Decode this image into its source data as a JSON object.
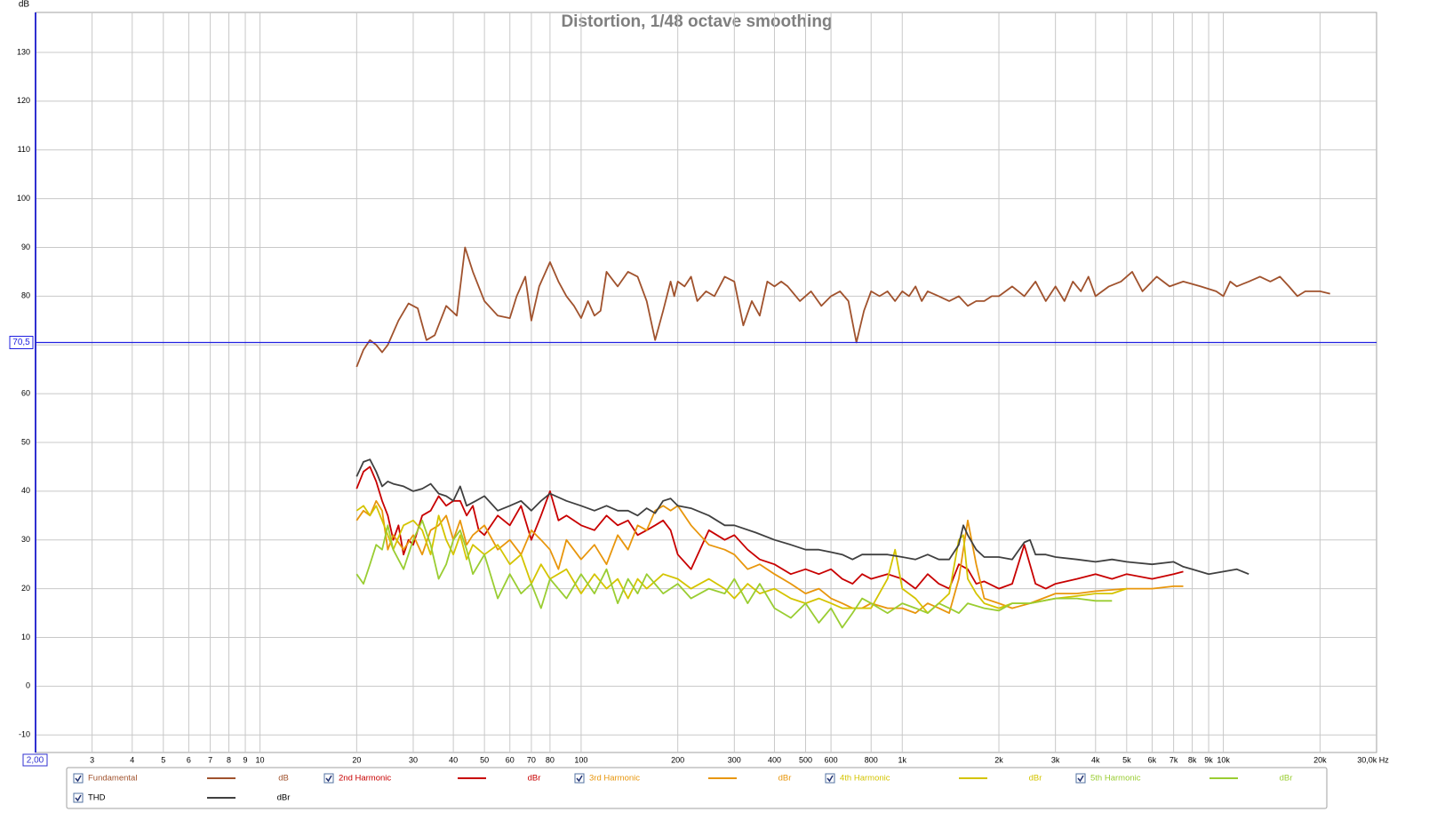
{
  "chart_data": {
    "type": "line",
    "title": "Distortion, 1/48 octave smoothing",
    "y_label": "dB",
    "x_start_label": "2,00",
    "x_end_label": "30,0k Hz",
    "log_x": true,
    "grid": true,
    "xlim": [
      2,
      30000
    ],
    "ylim": [
      -13.6,
      138.2
    ],
    "xticks": [
      3,
      4,
      5,
      6,
      7,
      8,
      9,
      10,
      20,
      30,
      40,
      50,
      60,
      70,
      80,
      100,
      200,
      300,
      400,
      500,
      600,
      800,
      {
        "value": 1000,
        "label": "1k"
      },
      {
        "value": 2000,
        "label": "2k"
      },
      {
        "value": 3000,
        "label": "3k"
      },
      {
        "value": 4000,
        "label": "4k"
      },
      {
        "value": 5000,
        "label": "5k"
      },
      {
        "value": 6000,
        "label": "6k"
      },
      {
        "value": 7000,
        "label": "7k"
      },
      {
        "value": 8000,
        "label": "8k"
      },
      {
        "value": 9000,
        "label": "9k"
      },
      {
        "value": 10000,
        "label": "10k"
      },
      {
        "value": 20000,
        "label": "20k"
      }
    ],
    "yticks": [
      -10,
      0,
      10,
      20,
      30,
      40,
      50,
      60,
      70,
      80,
      90,
      100,
      110,
      120,
      130
    ],
    "cursor": {
      "value": 70.5,
      "label": "70,5"
    },
    "series": [
      {
        "name": "Fundamental",
        "unit": "dB",
        "color": "#a0522d",
        "x": [
          20,
          21,
          22,
          23,
          24,
          25,
          27,
          29,
          31,
          33,
          35,
          38,
          41,
          43.5,
          46,
          50,
          55,
          60,
          63,
          67,
          70,
          74,
          80,
          85,
          90,
          95,
          100,
          105,
          110,
          115,
          120,
          130,
          140,
          150,
          160,
          170,
          180,
          190,
          195,
          200,
          210,
          220,
          230,
          245,
          260,
          280,
          300,
          320,
          340,
          360,
          380,
          400,
          420,
          440,
          480,
          520,
          560,
          600,
          640,
          680,
          720,
          760,
          800,
          850,
          900,
          950,
          1000,
          1050,
          1100,
          1150,
          1200,
          1300,
          1400,
          1500,
          1600,
          1700,
          1800,
          1900,
          2000,
          2200,
          2400,
          2600,
          2800,
          3000,
          3200,
          3400,
          3600,
          3800,
          4000,
          4400,
          4800,
          5200,
          5600,
          6200,
          6800,
          7500,
          8500,
          9500,
          10000,
          10500,
          11000,
          12000,
          13000,
          14000,
          15000,
          16000,
          17000,
          18000,
          20000,
          21500
        ],
        "values": [
          65.5,
          69,
          71,
          70,
          68.5,
          70,
          75,
          78.5,
          77.5,
          71,
          72,
          78,
          76,
          90,
          85,
          79,
          76,
          75.5,
          80,
          84,
          75,
          82,
          87,
          83,
          80,
          78,
          75.5,
          79,
          76,
          77,
          85,
          82,
          85,
          84,
          79,
          71,
          77,
          83,
          80,
          83,
          82,
          84,
          79,
          81,
          80,
          84,
          83,
          74,
          79,
          76,
          83,
          82,
          83,
          82,
          79,
          81,
          78,
          80,
          81,
          79,
          70.5,
          77,
          81,
          80,
          81,
          79,
          81,
          80,
          82,
          79,
          81,
          80,
          79,
          80,
          78,
          79,
          79,
          80,
          80,
          82,
          80,
          83,
          79,
          82,
          79,
          83,
          81,
          84,
          80,
          82,
          83,
          85,
          81,
          84,
          82,
          83,
          82,
          81,
          80,
          83,
          82,
          83,
          84,
          83,
          84,
          82,
          80,
          81,
          81,
          80.5
        ]
      },
      {
        "name": "2nd Harmonic",
        "unit": "dBr",
        "color": "#c80000",
        "x": [
          20,
          21,
          22,
          23,
          24,
          25,
          26,
          27,
          28,
          29,
          30,
          32,
          34,
          36,
          38,
          40,
          42,
          44,
          46,
          48,
          50,
          55,
          60,
          65,
          70,
          75,
          80,
          85,
          90,
          100,
          110,
          120,
          130,
          140,
          150,
          160,
          170,
          180,
          190,
          200,
          220,
          250,
          280,
          300,
          330,
          360,
          400,
          450,
          500,
          550,
          600,
          650,
          700,
          750,
          800,
          900,
          1000,
          1100,
          1200,
          1300,
          1400,
          1500,
          1600,
          1700,
          1800,
          2000,
          2200,
          2400,
          2600,
          2800,
          3000,
          3500,
          4000,
          4500,
          5000,
          6000,
          7000,
          7500
        ],
        "values": [
          40.5,
          44,
          45,
          42,
          38,
          35,
          30,
          33,
          27,
          30,
          29,
          35,
          36,
          39,
          37,
          38,
          38,
          35,
          37,
          32,
          31,
          35,
          33,
          37,
          30,
          35,
          40,
          34,
          35,
          33,
          32,
          35,
          33,
          34,
          31,
          32,
          33,
          34,
          32,
          27,
          24,
          32,
          30,
          31,
          28,
          26,
          25,
          23,
          24,
          23,
          24,
          22,
          21,
          23,
          22,
          23,
          22,
          20,
          23,
          21,
          20,
          25,
          24,
          21,
          21.5,
          20,
          21,
          29,
          21,
          20,
          21,
          22,
          23,
          22,
          23,
          22,
          23,
          23.5
        ]
      },
      {
        "name": "3rd Harmonic",
        "unit": "dBr",
        "color": "#e8960c",
        "x": [
          20,
          21,
          22,
          23,
          24,
          25,
          26,
          28,
          30,
          32,
          34,
          36,
          38,
          40,
          42,
          44,
          46,
          50,
          55,
          60,
          65,
          70,
          75,
          80,
          85,
          90,
          100,
          110,
          120,
          130,
          140,
          150,
          160,
          170,
          180,
          190,
          200,
          220,
          250,
          280,
          300,
          330,
          360,
          400,
          450,
          500,
          550,
          600,
          650,
          700,
          750,
          800,
          900,
          1000,
          1100,
          1200,
          1300,
          1400,
          1500,
          1600,
          1700,
          1800,
          2000,
          2200,
          2500,
          3000,
          3500,
          4000,
          5000,
          6000,
          7000,
          7500
        ],
        "values": [
          34,
          36,
          35,
          38,
          36,
          28,
          31,
          28,
          31,
          27,
          32,
          33,
          35,
          30,
          34,
          29,
          31,
          33,
          28,
          30,
          27,
          32,
          30,
          28,
          24,
          30,
          26,
          29,
          25,
          31,
          28,
          33,
          32,
          36,
          37,
          36,
          37,
          33,
          29,
          28,
          27,
          24,
          25,
          23,
          21,
          19,
          20,
          18,
          17,
          16,
          16,
          17,
          16,
          16,
          15,
          17,
          16,
          15,
          22,
          34,
          25,
          18,
          17,
          16,
          17,
          19,
          19,
          19.5,
          20,
          20,
          20.5,
          20.5
        ]
      },
      {
        "name": "4th Harmonic",
        "unit": "dBr",
        "color": "#d4c400",
        "x": [
          20,
          21,
          22,
          23,
          24,
          25,
          26,
          28,
          30,
          32,
          34,
          36,
          38,
          40,
          42,
          44,
          46,
          50,
          55,
          60,
          65,
          70,
          75,
          80,
          90,
          100,
          110,
          120,
          130,
          140,
          150,
          160,
          180,
          200,
          220,
          250,
          280,
          300,
          330,
          360,
          400,
          450,
          500,
          550,
          600,
          650,
          700,
          800,
          900,
          950,
          1000,
          1100,
          1200,
          1300,
          1400,
          1500,
          1550,
          1600,
          1700,
          1800,
          2000,
          2200,
          2500,
          3000,
          3500,
          4000,
          4500,
          5000
        ],
        "values": [
          36,
          37,
          35,
          37,
          34,
          31,
          28,
          33,
          34,
          32,
          27,
          35,
          30,
          27,
          31,
          26,
          29,
          27,
          29,
          25,
          27,
          21,
          25,
          22,
          24,
          19,
          23,
          20,
          22,
          18,
          22,
          20,
          23,
          22,
          20,
          22,
          20,
          18,
          21,
          19,
          20,
          18,
          17,
          18,
          17,
          16,
          16,
          16,
          22,
          28,
          20,
          18,
          15,
          17,
          19,
          30,
          31,
          22,
          19,
          17,
          16,
          17,
          17,
          18,
          18.5,
          19,
          19,
          20
        ]
      },
      {
        "name": "5th Harmonic",
        "unit": "dBr",
        "color": "#9acd32",
        "x": [
          20,
          21,
          22,
          23,
          24,
          25,
          26,
          28,
          30,
          32,
          34,
          36,
          38,
          40,
          42,
          44,
          46,
          50,
          55,
          60,
          65,
          70,
          75,
          80,
          90,
          100,
          110,
          120,
          130,
          140,
          150,
          160,
          180,
          200,
          220,
          250,
          280,
          300,
          330,
          360,
          400,
          450,
          500,
          550,
          600,
          650,
          700,
          750,
          800,
          900,
          1000,
          1100,
          1200,
          1300,
          1400,
          1500,
          1600,
          1800,
          2000,
          2200,
          2500,
          3000,
          3500,
          4000,
          4500
        ],
        "values": [
          23,
          21,
          25,
          29,
          28,
          33,
          28,
          24,
          30,
          34,
          29,
          22,
          25,
          30,
          32,
          28,
          23,
          27,
          18,
          23,
          19,
          21,
          16,
          22,
          18,
          23,
          19,
          24,
          17,
          22,
          19,
          23,
          19,
          21,
          18,
          20,
          19,
          22,
          17,
          21,
          16,
          14,
          17,
          13,
          16,
          12,
          15,
          18,
          17,
          15,
          17,
          16,
          15,
          17,
          16,
          15,
          17,
          16,
          15.5,
          17,
          17,
          18,
          18,
          17.5,
          17.5
        ]
      },
      {
        "name": "THD",
        "unit": "dBr",
        "color": "#404040",
        "x": [
          20,
          21,
          22,
          23,
          24,
          25,
          26,
          28,
          30,
          32,
          34,
          36,
          38,
          40,
          42,
          44,
          47,
          50,
          55,
          60,
          65,
          70,
          75,
          80,
          90,
          100,
          110,
          120,
          130,
          140,
          150,
          160,
          170,
          180,
          190,
          200,
          220,
          250,
          280,
          300,
          350,
          400,
          450,
          500,
          550,
          600,
          650,
          700,
          750,
          800,
          900,
          1000,
          1100,
          1200,
          1300,
          1400,
          1500,
          1550,
          1600,
          1700,
          1800,
          2000,
          2200,
          2400,
          2500,
          2600,
          2800,
          3000,
          3500,
          4000,
          4500,
          5000,
          6000,
          7000,
          7500,
          8000,
          9000,
          10000,
          11000,
          12000
        ],
        "values": [
          43,
          46,
          46.5,
          44,
          41,
          42,
          41.5,
          41,
          40,
          40.5,
          41.5,
          39.5,
          39,
          38,
          41,
          37,
          38,
          39,
          36,
          37,
          38,
          36,
          38,
          39.5,
          38,
          37,
          36,
          37,
          36,
          36,
          35,
          36.5,
          35.5,
          38,
          38.5,
          37,
          36.5,
          35,
          33,
          33,
          31.5,
          30,
          29,
          28,
          28,
          27.5,
          27,
          26,
          27,
          27,
          27,
          26.5,
          26,
          27,
          26,
          26,
          29,
          33,
          31,
          28,
          26.5,
          26.5,
          26,
          29.5,
          30,
          27,
          27,
          26.5,
          26,
          25.5,
          26,
          25.5,
          25,
          25.5,
          24.5,
          24,
          23,
          23.5,
          24,
          23
        ]
      }
    ]
  }
}
